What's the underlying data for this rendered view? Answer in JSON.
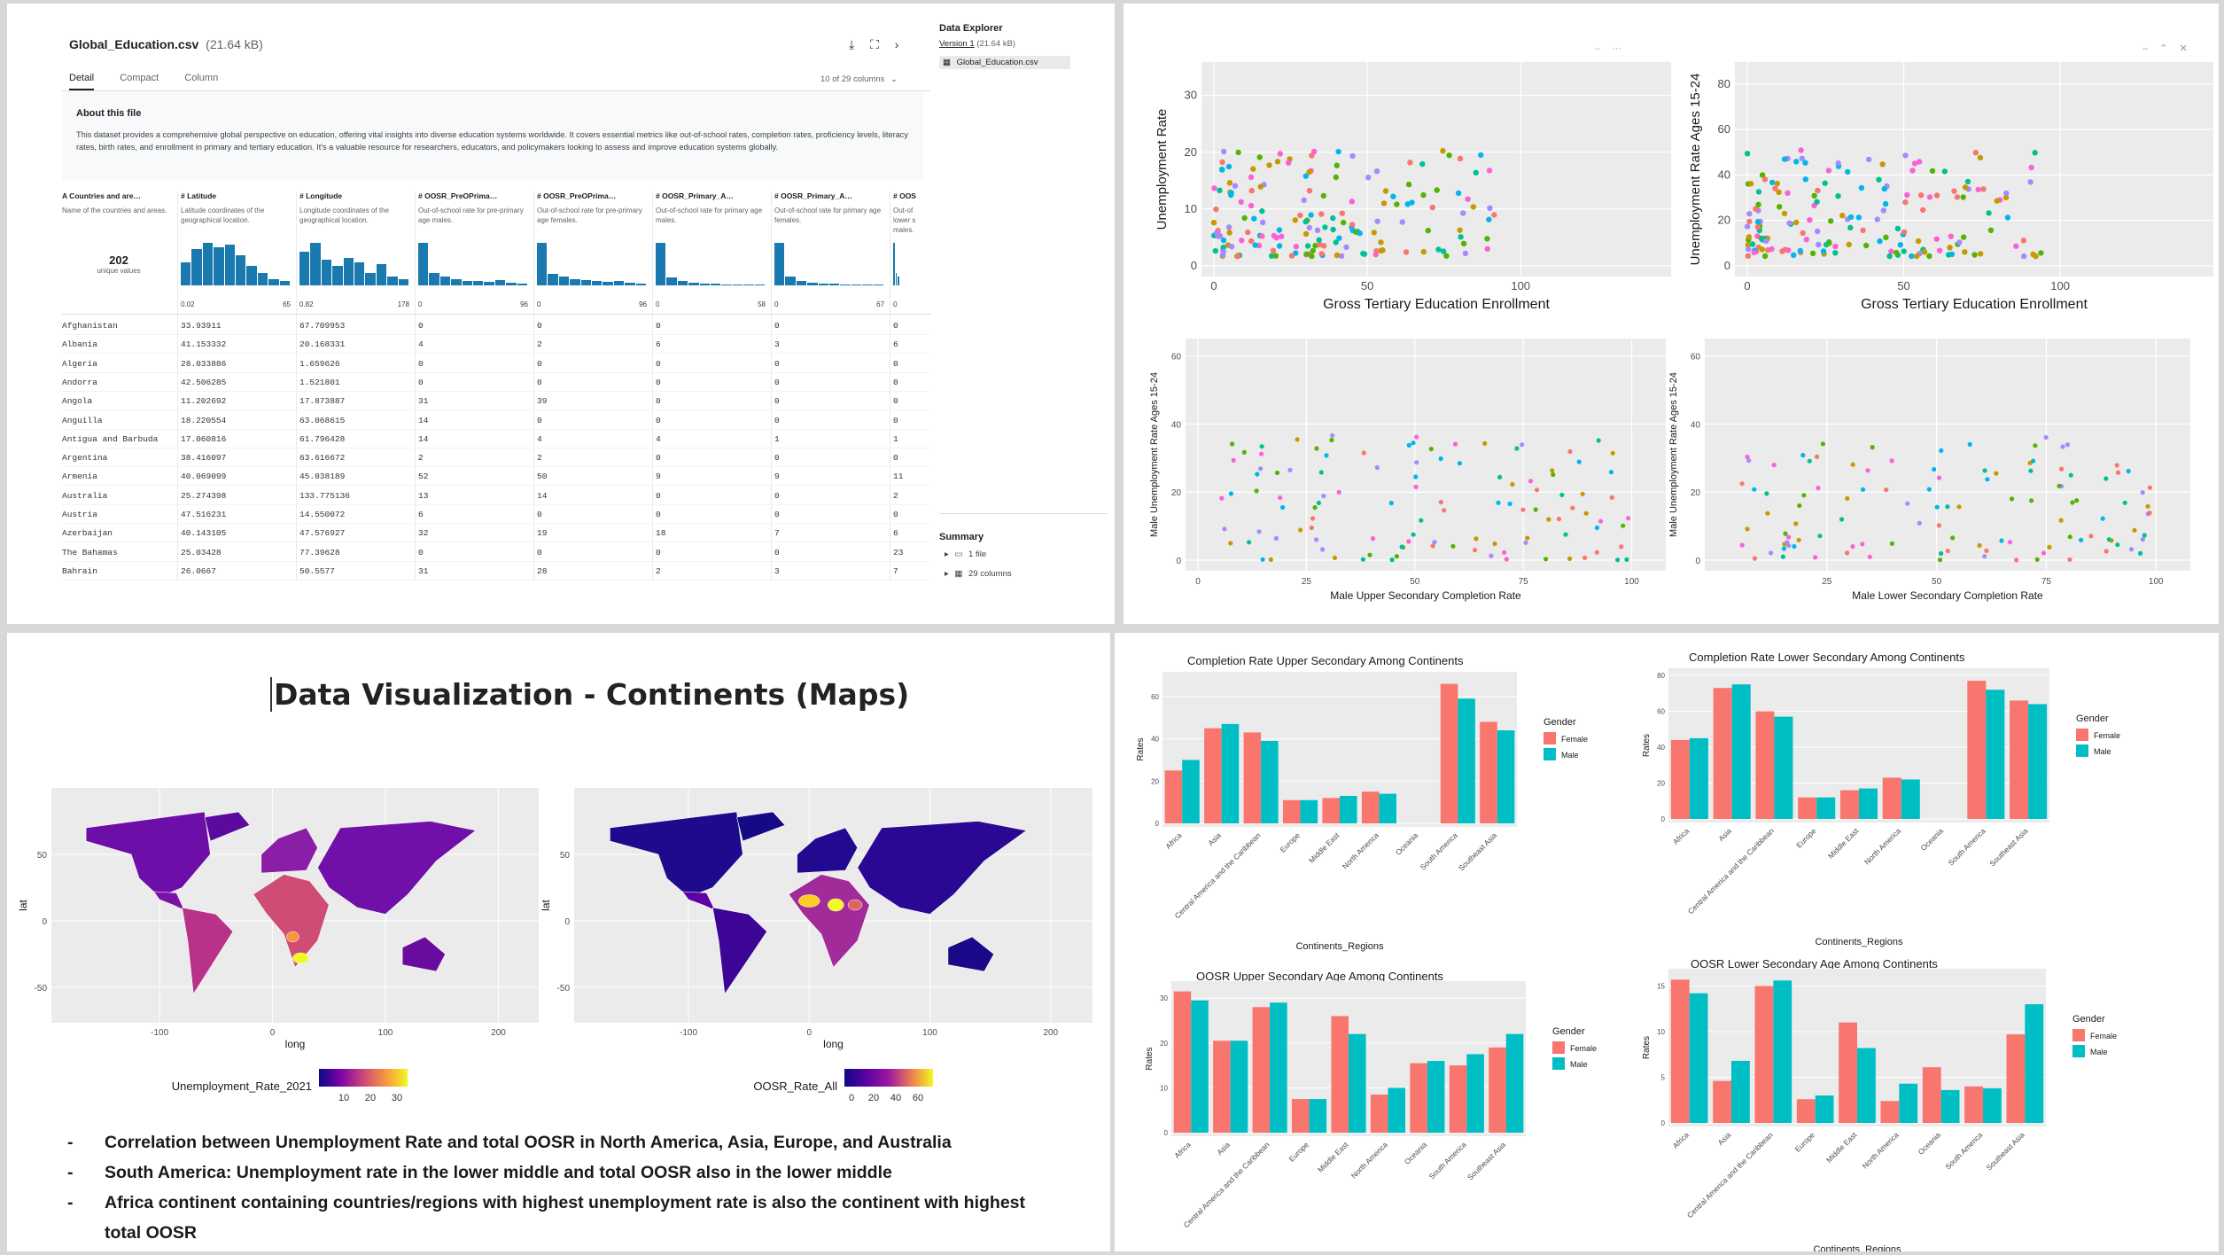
{
  "kaggle": {
    "file_title": "Global_Education.csv",
    "file_size": "(21.64 kB)",
    "tabs": [
      "Detail",
      "Compact",
      "Column"
    ],
    "columns_select": "10 of 29 columns",
    "about_heading": "About this file",
    "about_text": "This dataset provides a comprehensive global perspective on education, offering vital insights into diverse education systems worldwide. It covers essential metrics like out-of-school rates, completion rates, proficiency levels, literacy rates, birth rates, and enrollment in primary and tertiary education. It's a valuable resource for researchers, educators, and policymakers looking to assess and improve education systems globally.",
    "columns": [
      {
        "name": "Countries and are…",
        "desc": "Name of the countries and areas.",
        "range_min": "",
        "range_max": ""
      },
      {
        "name": "Latitude",
        "desc": "Latitude coordinates of the geographical location.",
        "range_min": "0.02",
        "range_max": "65"
      },
      {
        "name": "Longitude",
        "desc": "Longitude coordinates of the geographical location.",
        "range_min": "0.82",
        "range_max": "178"
      },
      {
        "name": "OOSR_PreOPrima…",
        "desc": "Out-of-school rate for pre-primary age males.",
        "range_min": "0",
        "range_max": "96"
      },
      {
        "name": "OOSR_PreOPrima…",
        "desc": "Out-of-school rate for pre-primary age females.",
        "range_min": "0",
        "range_max": "96"
      },
      {
        "name": "OOSR_Primary_A…",
        "desc": "Out-of-school rate for primary age males.",
        "range_min": "0",
        "range_max": "58"
      },
      {
        "name": "OOSR_Primary_A…",
        "desc": "Out-of-school rate for primary age females.",
        "range_min": "0",
        "range_max": "67"
      },
      {
        "name": "OOS",
        "desc": "Out-of lower s males.",
        "range_min": "0",
        "range_max": ""
      }
    ],
    "unique_count": "202",
    "unique_label": "unique values",
    "histograms": [
      [],
      [
        0.55,
        0.85,
        1.0,
        0.9,
        0.95,
        0.7,
        0.45,
        0.3,
        0.15,
        0.1
      ],
      [
        0.8,
        1.0,
        0.6,
        0.45,
        0.65,
        0.55,
        0.3,
        0.5,
        0.2,
        0.15
      ],
      [
        1.0,
        0.3,
        0.2,
        0.15,
        0.1,
        0.1,
        0.08,
        0.12,
        0.06,
        0.05
      ],
      [
        1.0,
        0.28,
        0.2,
        0.15,
        0.12,
        0.1,
        0.08,
        0.1,
        0.06,
        0.05
      ],
      [
        1.0,
        0.18,
        0.1,
        0.07,
        0.05,
        0.04,
        0.03,
        0.02,
        0.02,
        0.02
      ],
      [
        1.0,
        0.2,
        0.1,
        0.07,
        0.05,
        0.04,
        0.03,
        0.02,
        0.02,
        0.02
      ],
      [
        1.0,
        0.3,
        0.2
      ]
    ],
    "rows": [
      [
        "Afghanistan",
        "33.93911",
        "67.709953",
        "0",
        "0",
        "0",
        "0",
        "0"
      ],
      [
        "Albania",
        "41.153332",
        "20.168331",
        "4",
        "2",
        "6",
        "3",
        "6"
      ],
      [
        "Algeria",
        "28.033886",
        "1.659626",
        "0",
        "0",
        "0",
        "0",
        "0"
      ],
      [
        "Andorra",
        "42.506285",
        "1.521801",
        "0",
        "0",
        "0",
        "0",
        "0"
      ],
      [
        "Angola",
        "11.202692",
        "17.873887",
        "31",
        "39",
        "0",
        "0",
        "0"
      ],
      [
        "Anguilla",
        "18.220554",
        "63.068615",
        "14",
        "0",
        "0",
        "0",
        "0"
      ],
      [
        "Antigua and Barbuda",
        "17.060816",
        "61.796428",
        "14",
        "4",
        "4",
        "1",
        "1"
      ],
      [
        "Argentina",
        "38.416097",
        "63.616672",
        "2",
        "2",
        "0",
        "0",
        "0"
      ],
      [
        "Armenia",
        "40.069099",
        "45.038189",
        "52",
        "50",
        "9",
        "9",
        "11"
      ],
      [
        "Australia",
        "25.274398",
        "133.775136",
        "13",
        "14",
        "0",
        "0",
        "2"
      ],
      [
        "Austria",
        "47.516231",
        "14.550072",
        "6",
        "0",
        "0",
        "0",
        "0"
      ],
      [
        "Azerbaijan",
        "40.143105",
        "47.576927",
        "32",
        "19",
        "18",
        "7",
        "6"
      ],
      [
        "The Bahamas",
        "25.03428",
        "77.39628",
        "0",
        "0",
        "0",
        "0",
        "23"
      ],
      [
        "Bahrain",
        "26.0667",
        "50.5577",
        "31",
        "28",
        "2",
        "3",
        "7"
      ]
    ],
    "explorer": {
      "heading": "Data Explorer",
      "version": "Version 1",
      "version_size": "(21.64 kB)",
      "file": "Global_Education.csv",
      "summary_heading": "Summary",
      "summary_files": "1 file",
      "summary_columns": "29 columns"
    }
  },
  "scatter": {
    "palette": [
      "#F8766D",
      "#C49A00",
      "#53B400",
      "#00C094",
      "#00B6EB",
      "#A58AFF",
      "#FB61D7"
    ],
    "charts": [
      {
        "xlabel": "Gross Tertiary Education Enrollment",
        "ylabel": "Unemployment Rate",
        "x_ticks": [
          "0",
          "50",
          "100"
        ],
        "y_ticks": [
          "0",
          "10",
          "20",
          "30"
        ]
      },
      {
        "xlabel": "Gross Tertiary Education Enrollment",
        "ylabel": "Unemployment Rate Ages 15-24",
        "x_ticks": [
          "0",
          "50",
          "100"
        ],
        "y_ticks": [
          "0",
          "20",
          "40",
          "60",
          "80"
        ]
      },
      {
        "xlabel": "Male Upper Secondary Completion Rate",
        "ylabel": "Male Unemployment Rate Ages 15-24",
        "x_ticks": [
          "0",
          "25",
          "50",
          "75",
          "100"
        ],
        "y_ticks": [
          "0",
          "20",
          "40",
          "60"
        ]
      },
      {
        "xlabel": "Male Lower Secondary Completion Rate",
        "ylabel": "Male Unemployment Rate Ages 15-24",
        "x_ticks": [
          "25",
          "50",
          "75",
          "100"
        ],
        "y_ticks": [
          "0",
          "20",
          "40",
          "60"
        ]
      }
    ]
  },
  "maps": {
    "title": "Data Visualization - Continents (Maps)",
    "left": {
      "xlabel": "long",
      "ylabel": "lat",
      "legend_title": "Unemployment_Rate_2021",
      "legend_ticks": [
        "10",
        "20",
        "30"
      ],
      "x_ticks": [
        "-100",
        "0",
        "100",
        "200"
      ],
      "y_ticks": [
        "50",
        "0",
        "-50"
      ]
    },
    "right": {
      "xlabel": "long",
      "ylabel": "lat",
      "legend_title": "OOSR_Rate_All",
      "legend_ticks": [
        "0",
        "20",
        "40",
        "60"
      ],
      "x_ticks": [
        "-100",
        "0",
        "100",
        "200"
      ],
      "y_ticks": [
        "50",
        "0",
        "-50"
      ]
    },
    "bullets": [
      "Correlation between Unemployment Rate and total OOSR in North America, Asia, Europe, and Australia",
      "South America: Unemployment rate in the lower middle and total OOSR also in the lower middle",
      "Africa continent containing countries/regions with highest unemployment rate is also the continent with highest",
      "total OOSR"
    ],
    "dash": "-"
  },
  "chart_data": [
    {
      "type": "bar",
      "title": "Completion Rate Upper Secondary Among Continents",
      "xlabel": "Continents_Regions",
      "ylabel": "Rates",
      "ylim": [
        0,
        70
      ],
      "y_ticks": [
        "0",
        "20",
        "40",
        "60"
      ],
      "categories": [
        "Africa",
        "Asia",
        "Central America and the Caribbean",
        "Europe",
        "Middle East",
        "North America",
        "Oceania",
        "South America",
        "Southeast Asia"
      ],
      "series": [
        {
          "name": "Female",
          "values": [
            25,
            45,
            43,
            11,
            12,
            15,
            0,
            66,
            48
          ]
        },
        {
          "name": "Male",
          "values": [
            30,
            47,
            39,
            11,
            13,
            14,
            0,
            59,
            44
          ]
        }
      ],
      "legend_title": "Gender"
    },
    {
      "type": "bar",
      "title": "Completion Rate Lower Secondary Among Continents",
      "xlabel": "Continents_Regions",
      "ylabel": "Rates",
      "ylim": [
        0,
        82
      ],
      "y_ticks": [
        "0",
        "20",
        "40",
        "60",
        "80"
      ],
      "categories": [
        "Africa",
        "Asia",
        "Central America and the Caribbean",
        "Europe",
        "Middle East",
        "North America",
        "Oceania",
        "South America",
        "Southeast Asia"
      ],
      "series": [
        {
          "name": "Female",
          "values": [
            44,
            73,
            60,
            12,
            16,
            23,
            0,
            77,
            66
          ]
        },
        {
          "name": "Male",
          "values": [
            45,
            75,
            57,
            12,
            17,
            22,
            0,
            72,
            64
          ]
        }
      ],
      "legend_title": "Gender"
    },
    {
      "type": "bar",
      "title": "OOSR Upper Secondary Age Among Continents",
      "xlabel": "Continents_Regions",
      "ylabel": "Rates",
      "ylim": [
        0,
        33
      ],
      "y_ticks": [
        "0",
        "10",
        "20",
        "30"
      ],
      "categories": [
        "Africa",
        "Asia",
        "Central America and the Caribbean",
        "Europe",
        "Middle East",
        "North America",
        "Oceania",
        "South America",
        "Southeast Asia"
      ],
      "series": [
        {
          "name": "Female",
          "values": [
            31.5,
            20.5,
            28,
            7.5,
            26,
            8.5,
            15.5,
            15,
            19
          ]
        },
        {
          "name": "Male",
          "values": [
            29.5,
            20.5,
            29,
            7.5,
            22,
            10,
            16,
            17.5,
            22
          ]
        }
      ],
      "legend_title": "Gender"
    },
    {
      "type": "bar",
      "title": "OOSR Lower Secondary Age Among Continents",
      "xlabel": "Continents_Regions",
      "ylabel": "Rates",
      "ylim": [
        0,
        16.5
      ],
      "y_ticks": [
        "0",
        "5",
        "10",
        "15"
      ],
      "categories": [
        "Africa",
        "Asia",
        "Central America and the Caribbean",
        "Europe",
        "Middle East",
        "North America",
        "Oceania",
        "South America",
        "Southeast Asia"
      ],
      "series": [
        {
          "name": "Female",
          "values": [
            15.7,
            4.6,
            15,
            2.6,
            11,
            2.4,
            6.1,
            4,
            9.7
          ]
        },
        {
          "name": "Male",
          "values": [
            14.2,
            6.8,
            15.6,
            3,
            8.2,
            4.3,
            3.6,
            3.8,
            13
          ]
        }
      ],
      "legend_title": "Gender"
    }
  ],
  "colors": {
    "female": "#F8766D",
    "male": "#00BFC4",
    "panel_bg": "#EBEBEB",
    "kaggle_blue": "#1a7ab0"
  }
}
